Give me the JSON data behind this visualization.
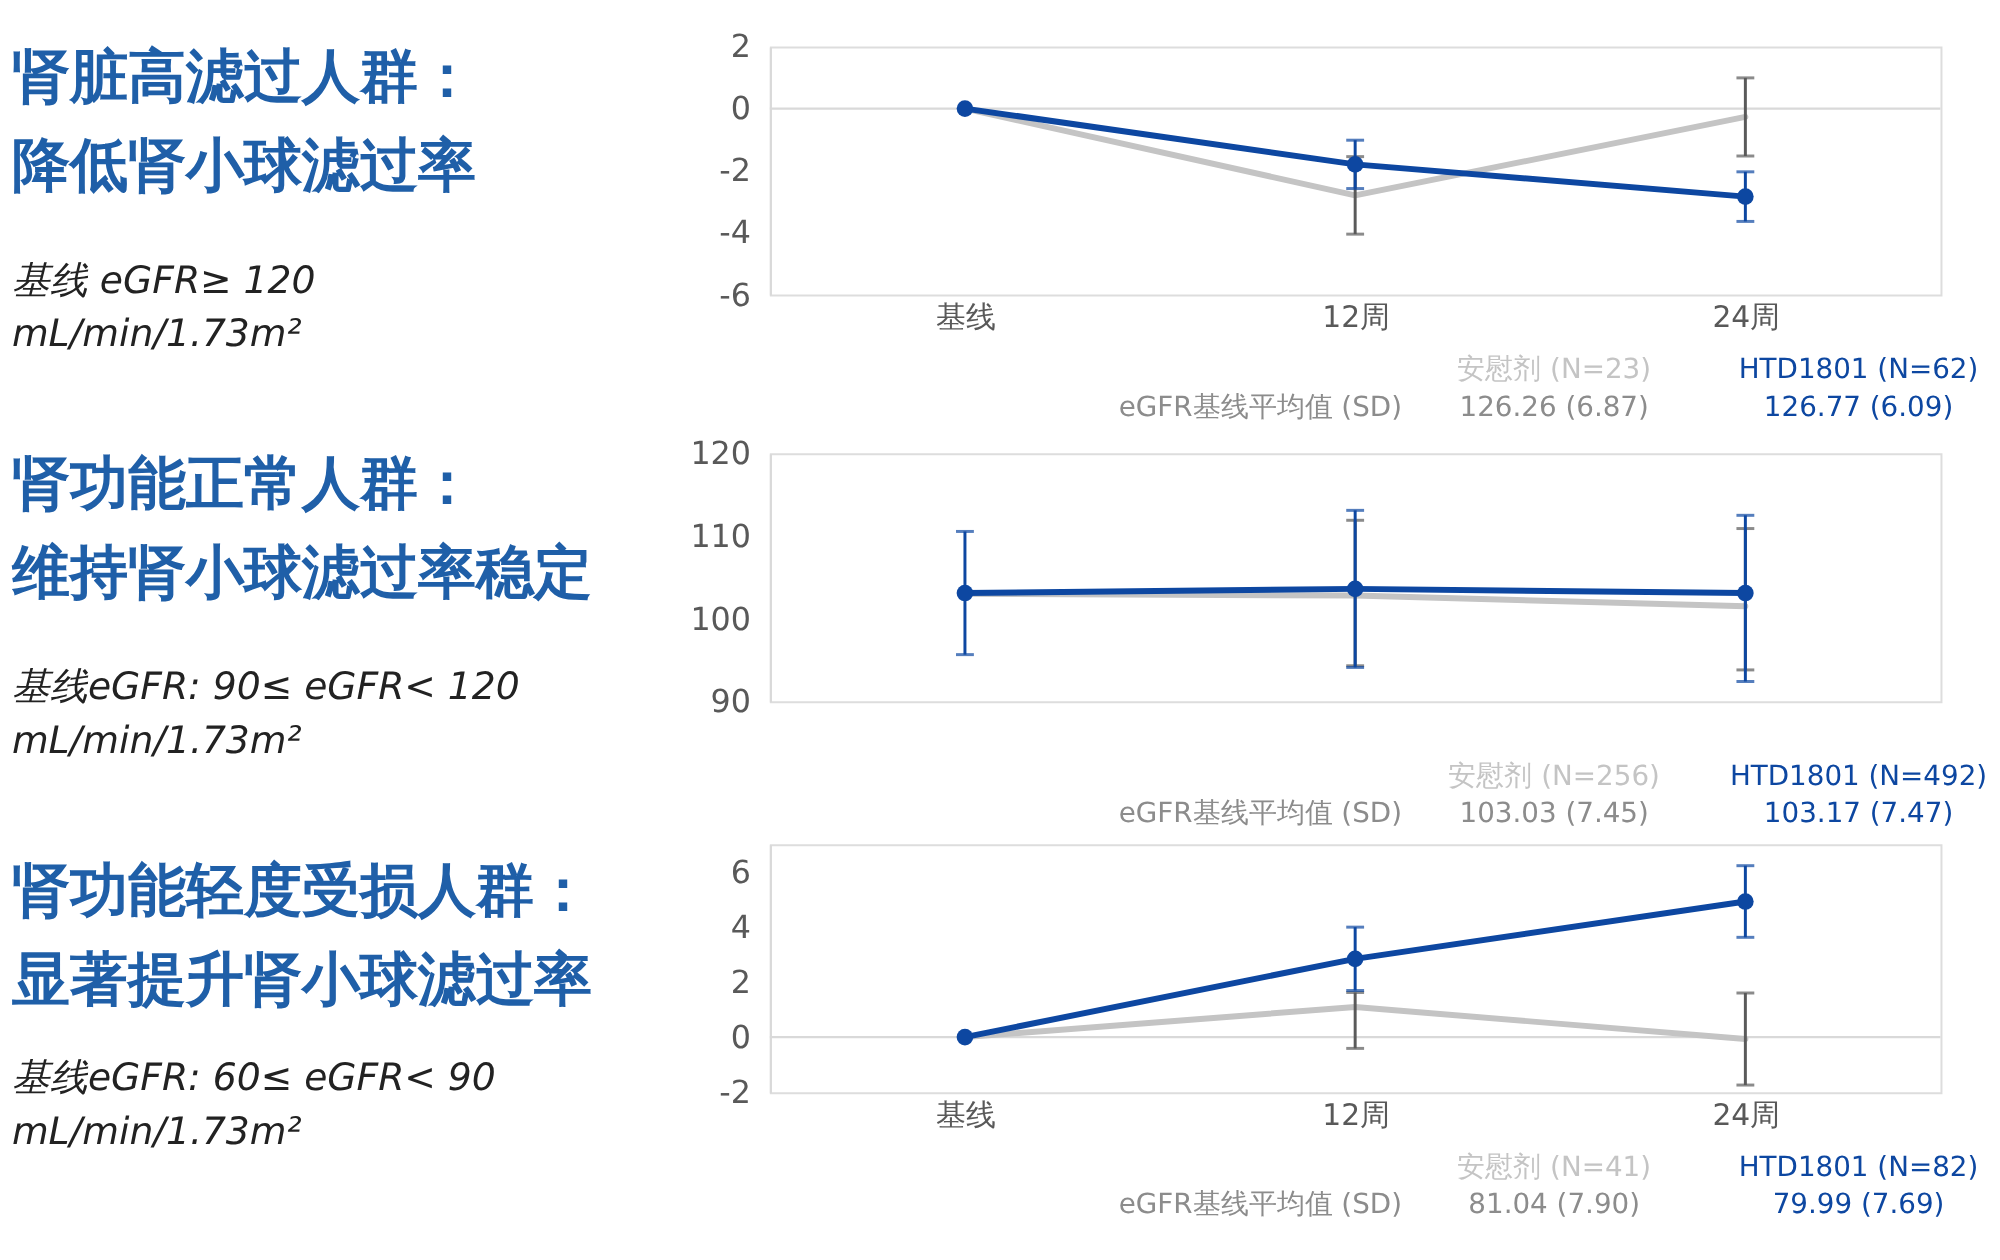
{
  "chart_data": [
    {
      "type": "line",
      "title": "肾脏高滤过人群：",
      "subtitle": "降低肾小球滤过率",
      "annotations": [
        "基线 eGFR≥ 120\nmL/min/1.73m²",
        "eGFR基线平均值 (SD)",
        "126.26 (6.87)",
        "126.77 (6.09)"
      ],
      "categories": [
        "基线",
        "12周",
        "24周"
      ],
      "series": [
        {
          "name": "安慰剂 (N=23)",
          "color": "#c4c4c4",
          "marker": "none",
          "values": [
            0,
            -2.8,
            -0.27
          ],
          "errors": [
            null,
            1.25,
            1.26
          ]
        },
        {
          "name": "HTD1801 (N=62)",
          "color": "#0d47a1",
          "values": [
            0,
            -1.8,
            -2.84
          ],
          "errors": [
            null,
            0.78,
            0.8
          ]
        }
      ],
      "ylim": [
        -6,
        2
      ],
      "yticks": [
        -6,
        -4,
        -2,
        0,
        2
      ],
      "ref_lines": [
        {
          "axis": "y",
          "value": 0,
          "color": "#d9d9d9"
        }
      ],
      "grid": false,
      "legend": "bottom right",
      "marker": "circle"
    },
    {
      "type": "line",
      "title": "肾功能正常人群：",
      "subtitle": "维持肾小球滤过率稳定",
      "annotations": [
        "基线eGFR: 90≤ eGFR< 120\nmL/min/1.73m²",
        "eGFR基线平均值 (SD)",
        "103.03 (7.45)",
        "103.17 (7.47)"
      ],
      "categories": [
        null,
        null,
        null
      ],
      "series": [
        {
          "name": "安慰剂 (N=256)",
          "color": "#c4c4c4",
          "marker": "none",
          "values": [
            103.0,
            102.8,
            101.5
          ],
          "errors": [
            null,
            [
              94.3,
              111.9
            ],
            [
              93.8,
              110.9
            ]
          ]
        },
        {
          "name": "HTD1801 (N=492)",
          "color": "#0d47a1",
          "values": [
            103.1,
            103.6,
            103.1
          ],
          "errors": [
            7.45,
            9.5,
            [
              92.4,
              112.5
            ]
          ]
        }
      ],
      "ylim": [
        90,
        120
      ],
      "yticks": [
        90,
        100,
        110,
        120
      ],
      "tick_labels": "y",
      "grid": false,
      "legend": "bottom right",
      "marker": "circle"
    },
    {
      "type": "line",
      "title": "肾功能轻度受损人群：",
      "subtitle": "显著提升肾小球滤过率",
      "annotations": [
        "基线eGFR: 60≤ eGFR< 90\nmL/min/1.73m²",
        "eGFR基线平均值 (SD)",
        "81.04 (7.90)",
        "79.99 (7.69)"
      ],
      "categories": [
        "基线",
        "12周",
        "24周"
      ],
      "series": [
        {
          "name": "安慰剂 (N=41)",
          "color": "#c4c4c4",
          "marker": "none",
          "values": [
            0,
            1.09,
            -0.07
          ],
          "errors": [
            null,
            [
              -0.41,
              1.62
            ],
            1.67
          ]
        },
        {
          "name": "HTD1801 (N=82)",
          "color": "#0d47a1",
          "values": [
            0,
            2.84,
            4.92
          ],
          "errors": [
            null,
            1.15,
            1.3
          ]
        }
      ],
      "ylim": [
        -2,
        7
      ],
      "yticks": [
        -2,
        0,
        2,
        4,
        6
      ],
      "ref_lines": [
        {
          "axis": "y",
          "value": 0,
          "color": "#d9d9d9"
        }
      ],
      "grid": false,
      "legend": "bottom right",
      "marker": "circle"
    }
  ]
}
